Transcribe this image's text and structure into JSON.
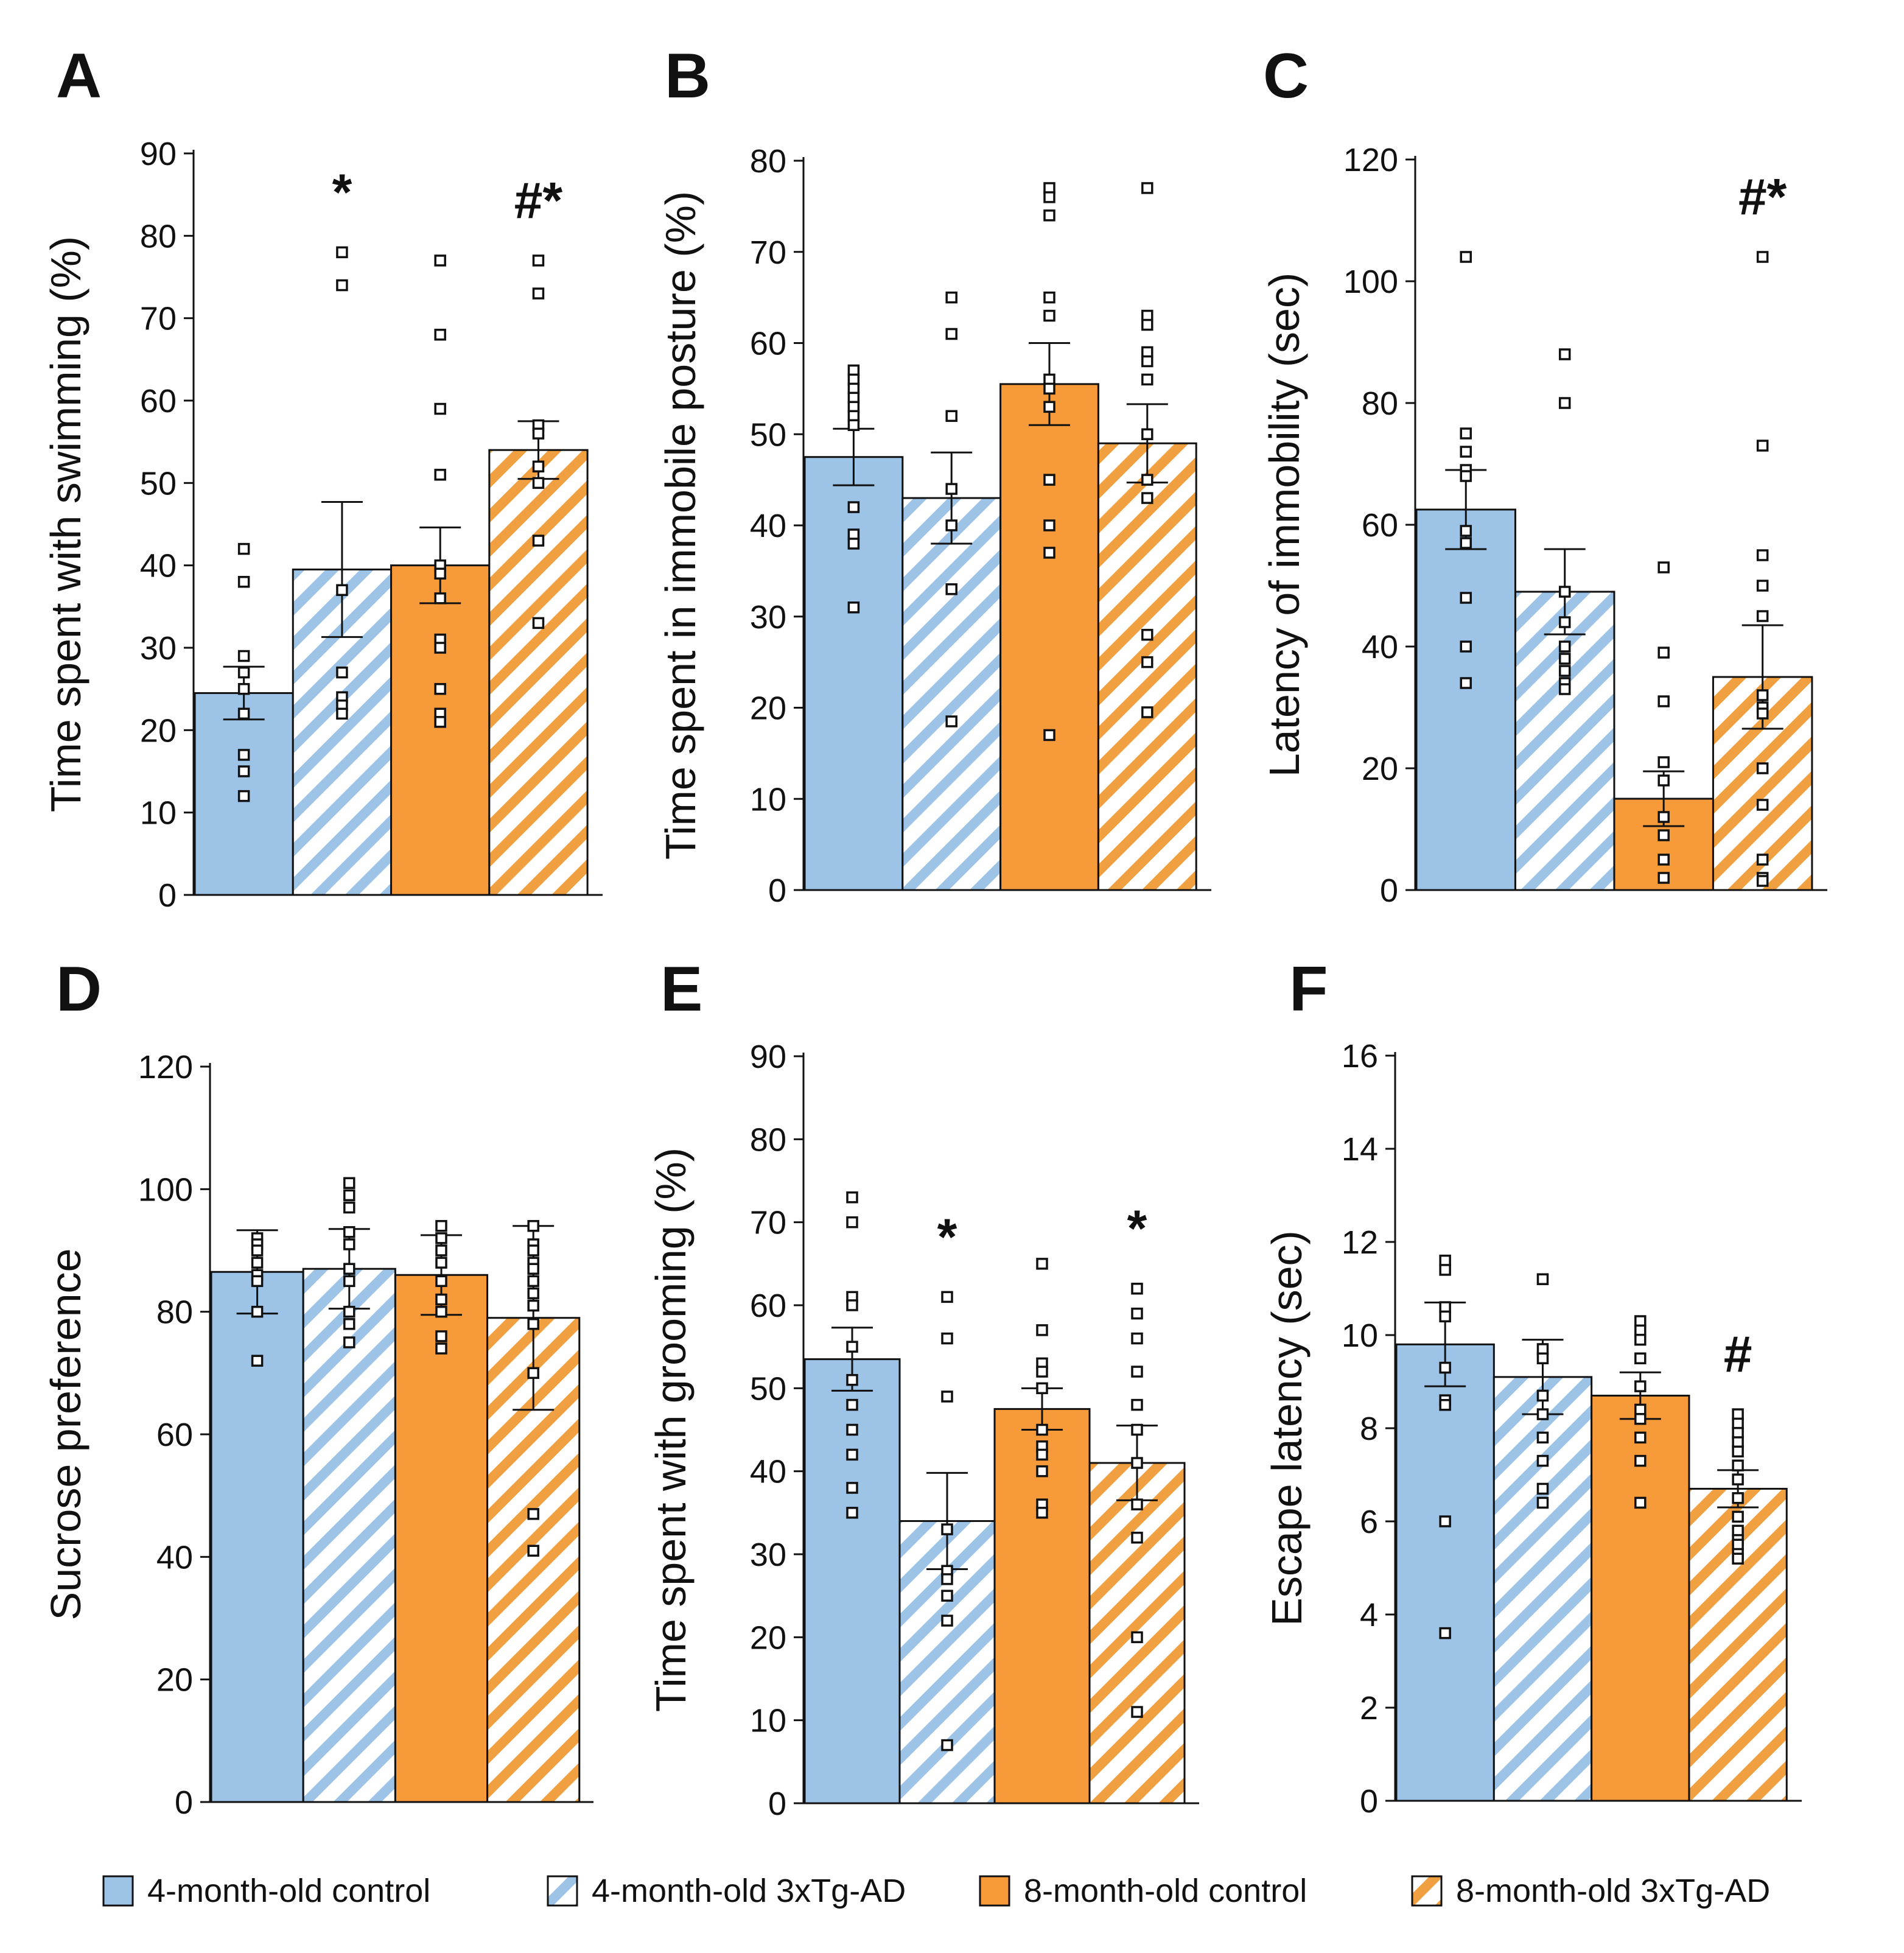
{
  "colors": {
    "blue": "#9dc3e6",
    "orange": "#f79a3a",
    "stripe_blue": "#9dc3e6",
    "stripe_orange": "#f0a040"
  },
  "legend": [
    {
      "label": "4-month-old control",
      "style": "solid-blue"
    },
    {
      "label": "4-month-old 3xTg-AD",
      "style": "hatch-blue"
    },
    {
      "label": "8-month-old control",
      "style": "solid-orange"
    },
    {
      "label": "8-month-old 3xTg-AD",
      "style": "hatch-orange"
    }
  ],
  "chart_data": [
    {
      "panel": "A",
      "type": "bar",
      "ylabel": "Time spent with swimming (%)",
      "ylim": [
        0,
        90
      ],
      "yticks": [
        0,
        10,
        20,
        30,
        40,
        50,
        60,
        70,
        80,
        90
      ],
      "categories": [
        "4-month-old control",
        "4-month-old 3xTg-AD",
        "8-month-old control",
        "8-month-old 3xTg-AD"
      ],
      "values": [
        24.5,
        39.5,
        40,
        54
      ],
      "errors": [
        3.2,
        8.2,
        4.6,
        3.5
      ],
      "annotations": [
        "",
        "*",
        "",
        "#*"
      ],
      "points": [
        [
          42,
          38,
          29,
          27,
          25,
          22,
          17,
          15,
          12
        ],
        [
          78,
          74,
          37,
          27,
          24,
          23,
          22
        ],
        [
          77,
          68,
          59,
          51,
          40,
          39,
          36,
          31,
          30,
          25,
          22,
          21,
          21
        ],
        [
          77,
          73,
          57,
          56,
          52,
          50,
          43,
          33
        ]
      ]
    },
    {
      "panel": "B",
      "type": "bar",
      "ylabel": "Time spent in immobile posture (%)",
      "ylim": [
        0,
        80
      ],
      "yticks": [
        0,
        10,
        20,
        30,
        40,
        50,
        60,
        70,
        80
      ],
      "categories": [
        "4-month-old control",
        "4-month-old 3xTg-AD",
        "8-month-old control",
        "8-month-old 3xTg-AD"
      ],
      "values": [
        47.5,
        43,
        55.5,
        49
      ],
      "errors": [
        3.1,
        5,
        4.5,
        4.3
      ],
      "annotations": [
        "",
        "",
        "",
        ""
      ],
      "points": [
        [
          57,
          56,
          55,
          54,
          53,
          52,
          51,
          42,
          39,
          38,
          31
        ],
        [
          65,
          61,
          52,
          44,
          40,
          33,
          18.5
        ],
        [
          77,
          76,
          74,
          65,
          63,
          56,
          55,
          53,
          45,
          40,
          37,
          17
        ],
        [
          77,
          63,
          62,
          59,
          58,
          56,
          50,
          45,
          43,
          28,
          25,
          19.5
        ]
      ]
    },
    {
      "panel": "C",
      "type": "bar",
      "ylabel": "Latency of immobility (sec)",
      "ylim": [
        0,
        120
      ],
      "yticks": [
        0,
        20,
        40,
        60,
        80,
        100,
        120
      ],
      "categories": [
        "4-month-old control",
        "4-month-old 3xTg-AD",
        "8-month-old control",
        "8-month-old 3xTg-AD"
      ],
      "values": [
        62.5,
        49,
        15,
        35
      ],
      "errors": [
        6.5,
        7,
        4.5,
        8.5
      ],
      "annotations": [
        "",
        "",
        "",
        "#*"
      ],
      "points": [
        [
          104,
          75,
          72,
          69,
          68,
          59,
          57,
          48,
          40,
          34
        ],
        [
          88,
          80,
          49,
          44,
          40,
          38,
          36,
          34,
          33
        ],
        [
          53,
          39,
          31,
          21,
          18,
          12,
          9,
          5,
          2
        ],
        [
          104,
          73,
          55,
          50,
          45,
          32,
          30,
          29,
          20,
          14,
          5,
          2,
          1.5
        ]
      ]
    },
    {
      "panel": "D",
      "type": "bar",
      "ylabel": "Sucrose preference",
      "ylim": [
        0,
        120
      ],
      "yticks": [
        0,
        20,
        40,
        60,
        80,
        100,
        120
      ],
      "categories": [
        "4-month-old control",
        "4-month-old 3xTg-AD",
        "8-month-old control",
        "8-month-old 3xTg-AD"
      ],
      "values": [
        86.5,
        87,
        86,
        79
      ],
      "errors": [
        6.8,
        6.5,
        6.5,
        15
      ],
      "annotations": [
        "",
        "",
        "",
        ""
      ],
      "points": [
        [
          92,
          91,
          90,
          88,
          86,
          85,
          80,
          72
        ],
        [
          101,
          99,
          97,
          93,
          91,
          87,
          85,
          80,
          78,
          75
        ],
        [
          94,
          92,
          90,
          88,
          85,
          82,
          80,
          76,
          74
        ],
        [
          94,
          91,
          90,
          88,
          87,
          85,
          83,
          81,
          78,
          70,
          47,
          41
        ]
      ]
    },
    {
      "panel": "E",
      "type": "bar",
      "ylabel": "Time spent with grooming (%)",
      "ylim": [
        0,
        90
      ],
      "yticks": [
        0,
        10,
        20,
        30,
        40,
        50,
        60,
        70,
        80,
        90
      ],
      "categories": [
        "4-month-old control",
        "4-month-old 3xTg-AD",
        "8-month-old control",
        "8-month-old 3xTg-AD"
      ],
      "values": [
        53.5,
        34,
        47.5,
        41
      ],
      "errors": [
        3.8,
        5.8,
        2.5,
        4.5
      ],
      "annotations": [
        "",
        "*",
        "",
        "*"
      ],
      "points": [
        [
          73,
          70,
          61,
          60,
          55,
          51,
          48,
          45,
          42,
          38,
          35
        ],
        [
          61,
          56,
          49,
          33,
          28,
          27,
          25,
          22,
          7
        ],
        [
          65,
          57,
          53,
          52,
          50,
          45,
          43,
          42,
          40,
          36,
          35
        ],
        [
          62,
          59,
          56,
          52,
          48,
          45,
          41,
          36,
          32,
          20,
          11
        ]
      ]
    },
    {
      "panel": "F",
      "type": "bar",
      "ylabel": "Escape latency (sec)",
      "ylim": [
        0,
        16
      ],
      "yticks": [
        0,
        2,
        4,
        6,
        8,
        10,
        12,
        14,
        16
      ],
      "categories": [
        "4-month-old control",
        "4-month-old 3xTg-AD",
        "8-month-old control",
        "8-month-old 3xTg-AD"
      ],
      "values": [
        9.8,
        9.1,
        8.7,
        6.7
      ],
      "errors": [
        0.9,
        0.8,
        0.5,
        0.4
      ],
      "annotations": [
        "",
        "",
        "",
        "#"
      ],
      "points": [
        [
          11.6,
          11.4,
          10.6,
          10.4,
          9.3,
          8.6,
          8.5,
          6.0,
          3.6
        ],
        [
          11.2,
          9.7,
          9.5,
          8.7,
          8.3,
          7.8,
          7.3,
          6.7,
          6.4
        ],
        [
          10.3,
          10.1,
          9.9,
          9.5,
          8.9,
          8.4,
          8.2,
          7.8,
          7.3,
          6.4
        ],
        [
          8.3,
          8.1,
          7.9,
          7.7,
          7.5,
          7.2,
          6.9,
          6.5,
          6.1,
          5.8,
          5.6,
          5.5,
          5.3,
          5.2
        ]
      ]
    }
  ]
}
